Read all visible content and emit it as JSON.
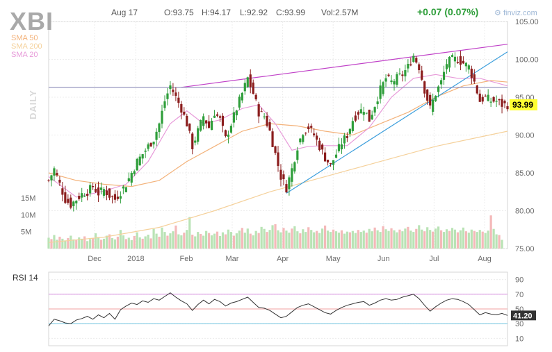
{
  "header": {
    "ticker": "XBI",
    "date": "Aug 17",
    "open": "O:93.75",
    "high": "H:94.17",
    "low": "L:92.92",
    "close": "C:93.99",
    "volume": "Vol:2.57M",
    "change": "+0.07 (0.07%)",
    "source": "finviz.com",
    "period": "DAILY"
  },
  "legend": [
    {
      "name": "SMA 50",
      "color": "#f3b27a"
    },
    {
      "name": "SMA 200",
      "color": "#f5d19b"
    },
    {
      "name": "SMA 20",
      "color": "#e79ad9"
    }
  ],
  "colors": {
    "up": "#2e9e3a",
    "down": "#8b1d1d",
    "trend": "#c042c8",
    "support": "#3d9fdc",
    "horizontal": "#8a8ab8",
    "rsi": "#333333",
    "last_price_bg": "#ffff33"
  },
  "chart_data": {
    "type": "candlestick",
    "x_ticks": [
      "Dec",
      "2018",
      "Feb",
      "Mar",
      "Apr",
      "May",
      "Jun",
      "Jul",
      "Aug"
    ],
    "y_ticks": [
      "105.00",
      "100.00",
      "95.00",
      "90.00",
      "85.00",
      "80.00",
      "75.00"
    ],
    "ylim": [
      75,
      105
    ],
    "volume_ticks": [
      "15M",
      "10M",
      "5M"
    ],
    "last_price": "93.99",
    "close_path": [
      [
        0,
        84.0
      ],
      [
        2,
        85.5
      ],
      [
        4,
        83.5
      ],
      [
        6,
        81.5
      ],
      [
        8,
        80.8
      ],
      [
        10,
        81.5
      ],
      [
        12,
        82.2
      ],
      [
        14,
        82.5
      ],
      [
        16,
        83.2
      ],
      [
        18,
        82.3
      ],
      [
        20,
        82.8
      ],
      [
        22,
        82.0
      ],
      [
        24,
        81.5
      ],
      [
        26,
        82.5
      ],
      [
        28,
        83.5
      ],
      [
        30,
        85.0
      ],
      [
        32,
        86.5
      ],
      [
        34,
        87.5
      ],
      [
        36,
        88.5
      ],
      [
        38,
        89.5
      ],
      [
        40,
        91.5
      ],
      [
        42,
        94.5
      ],
      [
        44,
        96.5
      ],
      [
        46,
        95.0
      ],
      [
        48,
        93.5
      ],
      [
        50,
        91.5
      ],
      [
        52,
        88.5
      ],
      [
        54,
        90.5
      ],
      [
        56,
        92.5
      ],
      [
        58,
        91.0
      ],
      [
        60,
        93.0
      ],
      [
        62,
        92.0
      ],
      [
        64,
        89.5
      ],
      [
        66,
        91.5
      ],
      [
        68,
        93.5
      ],
      [
        70,
        95.5
      ],
      [
        72,
        97.5
      ],
      [
        74,
        95.5
      ],
      [
        76,
        93.0
      ],
      [
        78,
        92.5
      ],
      [
        80,
        90.5
      ],
      [
        82,
        87.5
      ],
      [
        84,
        84.5
      ],
      [
        86,
        83.0
      ],
      [
        88,
        85.5
      ],
      [
        90,
        88.5
      ],
      [
        92,
        90.5
      ],
      [
        94,
        91.0
      ],
      [
        96,
        90.0
      ],
      [
        98,
        88.5
      ],
      [
        100,
        87.0
      ],
      [
        102,
        86.0
      ],
      [
        104,
        87.5
      ],
      [
        106,
        89.0
      ],
      [
        108,
        90.0
      ],
      [
        110,
        92.0
      ],
      [
        112,
        93.0
      ],
      [
        114,
        93.5
      ],
      [
        116,
        92.0
      ],
      [
        118,
        94.0
      ],
      [
        120,
        96.0
      ],
      [
        122,
        97.5
      ],
      [
        124,
        97.0
      ],
      [
        126,
        97.5
      ],
      [
        128,
        98.0
      ],
      [
        130,
        99.0
      ],
      [
        132,
        100.5
      ],
      [
        134,
        99.0
      ],
      [
        136,
        96.0
      ],
      [
        138,
        93.5
      ],
      [
        140,
        95.5
      ],
      [
        142,
        97.0
      ],
      [
        144,
        99.5
      ],
      [
        146,
        100.0
      ],
      [
        148,
        100.0
      ],
      [
        150,
        99.5
      ],
      [
        152,
        99.0
      ],
      [
        154,
        97.0
      ],
      [
        156,
        94.5
      ],
      [
        158,
        95.0
      ],
      [
        160,
        94.5
      ],
      [
        162,
        94.5
      ],
      [
        164,
        94.0
      ],
      [
        166,
        93.99
      ]
    ],
    "ohlc_summary": {
      "open": 93.75,
      "high": 94.17,
      "low": 92.92,
      "close": 93.99
    },
    "sma_20": [
      [
        0,
        84.5
      ],
      [
        10,
        81.8
      ],
      [
        20,
        82.6
      ],
      [
        28,
        83.5
      ],
      [
        36,
        86.5
      ],
      [
        44,
        91.5
      ],
      [
        50,
        93.2
      ],
      [
        56,
        91.5
      ],
      [
        62,
        92.0
      ],
      [
        70,
        93.5
      ],
      [
        76,
        94.0
      ],
      [
        82,
        91.5
      ],
      [
        88,
        88.0
      ],
      [
        94,
        88.5
      ],
      [
        100,
        88.6
      ],
      [
        108,
        88.6
      ],
      [
        116,
        91.0
      ],
      [
        124,
        95.0
      ],
      [
        132,
        97.5
      ],
      [
        140,
        98.0
      ],
      [
        148,
        97.5
      ],
      [
        156,
        97.5
      ],
      [
        166,
        96.5
      ]
    ],
    "sma_50": [
      [
        0,
        85.0
      ],
      [
        10,
        84.0
      ],
      [
        20,
        83.5
      ],
      [
        30,
        83.2
      ],
      [
        40,
        84.0
      ],
      [
        50,
        86.5
      ],
      [
        60,
        88.5
      ],
      [
        70,
        90.5
      ],
      [
        80,
        91.5
      ],
      [
        90,
        91.2
      ],
      [
        100,
        90.5
      ],
      [
        110,
        90.0
      ],
      [
        120,
        91.5
      ],
      [
        130,
        93.0
      ],
      [
        140,
        95.0
      ],
      [
        150,
        96.5
      ],
      [
        160,
        97.2
      ],
      [
        166,
        97.0
      ]
    ],
    "sma_200": [
      [
        0,
        75.8
      ],
      [
        20,
        76.5
      ],
      [
        40,
        77.8
      ],
      [
        60,
        80.0
      ],
      [
        80,
        82.5
      ],
      [
        100,
        84.5
      ],
      [
        120,
        86.5
      ],
      [
        140,
        88.5
      ],
      [
        166,
        90.5
      ]
    ],
    "trendlines": [
      {
        "kind": "resistance",
        "from": [
          48,
          96.3
        ],
        "to": [
          166,
          102.0
        ]
      },
      {
        "kind": "support",
        "from": [
          86,
          82.3
        ],
        "to": [
          166,
          101.0
        ]
      },
      {
        "kind": "horizontal",
        "from": [
          0,
          96.3
        ],
        "to": [
          166,
          96.3
        ]
      }
    ],
    "volume_millions": [
      3.2,
      2.8,
      4.0,
      2.6,
      3.5,
      2.9,
      2.4,
      3.1,
      3.8,
      2.7,
      2.5,
      3.3,
      2.9,
      3.6,
      2.2,
      2.8,
      3.0,
      4.5,
      3.4,
      2.6,
      2.9,
      3.8,
      4.2,
      3.1,
      2.7,
      3.5,
      5.5,
      3.9,
      2.8,
      3.2,
      2.5,
      3.7,
      4.8,
      3.3,
      2.9,
      3.6,
      4.1,
      3.0,
      5.8,
      4.4,
      3.5,
      6.2,
      4.9,
      3.8,
      4.5,
      5.1,
      6.8,
      4.2,
      3.9,
      4.7,
      5.5,
      9.3,
      4.1,
      3.6,
      4.9,
      4.3,
      3.8,
      5.2,
      4.6,
      3.9,
      4.4,
      5.0,
      3.7,
      4.8,
      4.2,
      5.6,
      4.9,
      3.8,
      4.5,
      5.3,
      6.1,
      4.7,
      5.9,
      4.4,
      3.9,
      5.2,
      4.6,
      6.4,
      5.8,
      4.9,
      5.5,
      6.9,
      7.2,
      5.4,
      4.8,
      6.1,
      5.3,
      4.7,
      5.9,
      6.6,
      5.1,
      4.5,
      5.7,
      4.9,
      6.3,
      5.5,
      4.8,
      5.2,
      4.6,
      5.9,
      6.8,
      5.3,
      4.9,
      5.6,
      5.1,
      4.7,
      5.4,
      4.4,
      5.0,
      4.8,
      5.2,
      4.6,
      5.5,
      4.9,
      5.3,
      4.7,
      5.8,
      5.1,
      6.2,
      5.4,
      4.9,
      6.6,
      5.7,
      5.2,
      6.0,
      5.4,
      4.8,
      5.6,
      5.1,
      5.9,
      6.4,
      5.3,
      4.9,
      5.8,
      6.9,
      5.6,
      5.1,
      6.3,
      5.5,
      5.0,
      5.9,
      6.5,
      5.4,
      4.9,
      5.7,
      5.2,
      6.1,
      5.6,
      4.8,
      5.4,
      6.2,
      5.1,
      4.7,
      5.6,
      5.2,
      4.9,
      5.5,
      5.0,
      4.6,
      5.3,
      9.8,
      5.8,
      4.2,
      4.0,
      2.57
    ],
    "rsi": {
      "label": "RSI 14",
      "value": "41.20",
      "y_ticks": [
        "90",
        "70",
        "50",
        "30",
        "10"
      ],
      "levels": {
        "overbought": 70,
        "mid": 50,
        "oversold": 30
      },
      "path": [
        [
          0,
          27
        ],
        [
          2,
          36
        ],
        [
          4,
          34
        ],
        [
          6,
          31
        ],
        [
          8,
          30
        ],
        [
          10,
          35
        ],
        [
          12,
          37
        ],
        [
          14,
          40
        ],
        [
          16,
          36
        ],
        [
          18,
          42
        ],
        [
          20,
          38
        ],
        [
          22,
          44
        ],
        [
          24,
          36
        ],
        [
          26,
          49
        ],
        [
          28,
          54
        ],
        [
          30,
          58
        ],
        [
          32,
          56
        ],
        [
          34,
          61
        ],
        [
          36,
          59
        ],
        [
          38,
          64
        ],
        [
          40,
          62
        ],
        [
          42,
          67
        ],
        [
          44,
          72
        ],
        [
          46,
          66
        ],
        [
          48,
          61
        ],
        [
          50,
          57
        ],
        [
          52,
          48
        ],
        [
          54,
          56
        ],
        [
          56,
          62
        ],
        [
          58,
          57
        ],
        [
          60,
          63
        ],
        [
          62,
          60
        ],
        [
          64,
          54
        ],
        [
          66,
          58
        ],
        [
          68,
          60
        ],
        [
          70,
          63
        ],
        [
          72,
          66
        ],
        [
          74,
          59
        ],
        [
          76,
          52
        ],
        [
          78,
          51
        ],
        [
          80,
          48
        ],
        [
          82,
          43
        ],
        [
          84,
          38
        ],
        [
          86,
          40
        ],
        [
          88,
          46
        ],
        [
          90,
          52
        ],
        [
          92,
          55
        ],
        [
          94,
          57
        ],
        [
          96,
          53
        ],
        [
          98,
          49
        ],
        [
          100,
          45
        ],
        [
          102,
          43
        ],
        [
          104,
          48
        ],
        [
          106,
          52
        ],
        [
          108,
          55
        ],
        [
          110,
          57
        ],
        [
          112,
          59
        ],
        [
          114,
          60
        ],
        [
          116,
          55
        ],
        [
          118,
          58
        ],
        [
          120,
          62
        ],
        [
          122,
          64
        ],
        [
          124,
          62
        ],
        [
          126,
          63
        ],
        [
          128,
          66
        ],
        [
          130,
          68
        ],
        [
          132,
          70
        ],
        [
          134,
          64
        ],
        [
          136,
          55
        ],
        [
          138,
          47
        ],
        [
          140,
          53
        ],
        [
          142,
          58
        ],
        [
          144,
          62
        ],
        [
          146,
          64
        ],
        [
          148,
          63
        ],
        [
          150,
          60
        ],
        [
          152,
          56
        ],
        [
          154,
          49
        ],
        [
          156,
          42
        ],
        [
          158,
          45
        ],
        [
          160,
          43
        ],
        [
          162,
          42
        ],
        [
          164,
          44
        ],
        [
          166,
          41.2
        ]
      ]
    }
  }
}
